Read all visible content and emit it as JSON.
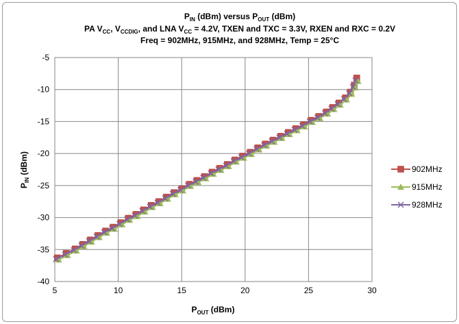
{
  "chart_data": {
    "type": "line",
    "title": {
      "line1": {
        "a": "P",
        "a_sub": "IN",
        "b": " (dBm) versus P",
        "b_sub": "OUT",
        "c": " (dBm)"
      },
      "line2": {
        "a": "PA V",
        "a_sub": "CC",
        "b": ", V",
        "b_sub": "CCDIG",
        "c": ", and LNA V",
        "c_sub": "CC",
        "d": " = 4.2V, TXEN and TXC = 3.3V, RXEN and RXC = 0.2V"
      },
      "line3": "Freq = 902MHz, 915MHz, and 928MHz, Temp = 25°C"
    },
    "xlabel": {
      "main": "P",
      "sub": "OUT",
      "rest": " (dBm)"
    },
    "ylabel": {
      "main": "P",
      "sub": "IN",
      "rest": " (dBm)"
    },
    "xlim": [
      5,
      30
    ],
    "ylim": [
      -40,
      -5
    ],
    "xticks": [
      5,
      10,
      15,
      20,
      25,
      30
    ],
    "yticks": [
      -40,
      -35,
      -30,
      -25,
      -20,
      -15,
      -10,
      -5
    ],
    "grid": true,
    "legend_position": "right",
    "series": [
      {
        "name": "902MHz",
        "color": "#c0504d",
        "marker": "square",
        "x": [
          5.2,
          5.9,
          6.6,
          7.2,
          7.8,
          8.4,
          9.0,
          9.6,
          10.2,
          10.8,
          11.4,
          12.0,
          12.6,
          13.2,
          13.8,
          14.4,
          15.0,
          15.6,
          16.2,
          16.8,
          17.4,
          18.0,
          18.6,
          19.2,
          19.8,
          20.4,
          21.0,
          21.6,
          22.2,
          22.8,
          23.4,
          24.0,
          24.6,
          25.2,
          25.8,
          26.4,
          26.9,
          27.4,
          27.9,
          28.3,
          28.6,
          28.8
        ],
        "y": [
          -36.3,
          -35.6,
          -34.9,
          -34.2,
          -33.5,
          -32.8,
          -32.1,
          -31.5,
          -30.8,
          -30.1,
          -29.5,
          -28.8,
          -28.1,
          -27.5,
          -26.8,
          -26.1,
          -25.5,
          -24.8,
          -24.2,
          -23.6,
          -22.9,
          -22.3,
          -21.7,
          -21.0,
          -20.4,
          -19.8,
          -19.1,
          -18.5,
          -17.9,
          -17.3,
          -16.7,
          -16.1,
          -15.5,
          -14.8,
          -14.2,
          -13.5,
          -12.8,
          -12.1,
          -11.3,
          -10.4,
          -9.3,
          -8.2
        ]
      },
      {
        "name": "915MHz",
        "color": "#9bbb59",
        "marker": "triangle",
        "x": [
          5.3,
          6.0,
          6.7,
          7.3,
          7.9,
          8.5,
          9.1,
          9.7,
          10.3,
          10.9,
          11.5,
          12.1,
          12.7,
          13.3,
          13.9,
          14.5,
          15.1,
          15.7,
          16.3,
          16.9,
          17.5,
          18.1,
          18.7,
          19.3,
          19.9,
          20.5,
          21.1,
          21.7,
          22.3,
          22.9,
          23.5,
          24.1,
          24.7,
          25.3,
          25.9,
          26.5,
          27.0,
          27.5,
          28.0,
          28.4,
          28.7,
          28.9
        ],
        "y": [
          -36.6,
          -35.9,
          -35.2,
          -34.5,
          -33.8,
          -33.1,
          -32.4,
          -31.8,
          -31.1,
          -30.4,
          -29.8,
          -29.1,
          -28.4,
          -27.8,
          -27.1,
          -26.4,
          -25.8,
          -25.1,
          -24.5,
          -23.9,
          -23.2,
          -22.6,
          -22.0,
          -21.3,
          -20.7,
          -20.1,
          -19.4,
          -18.8,
          -18.2,
          -17.6,
          -17.0,
          -16.4,
          -15.8,
          -15.1,
          -14.5,
          -13.8,
          -13.1,
          -12.4,
          -11.6,
          -10.7,
          -9.7,
          -8.7
        ]
      },
      {
        "name": "928MHz",
        "color": "#8064a2",
        "marker": "cross",
        "x": [
          5.1,
          5.8,
          6.5,
          7.1,
          7.7,
          8.3,
          8.9,
          9.5,
          10.1,
          10.7,
          11.3,
          11.9,
          12.5,
          13.1,
          13.7,
          14.3,
          14.9,
          15.5,
          16.1,
          16.7,
          17.3,
          17.9,
          18.5,
          19.1,
          19.7,
          20.3,
          20.9,
          21.5,
          22.1,
          22.7,
          23.3,
          23.9,
          24.5,
          25.1,
          25.7,
          26.3,
          26.8,
          27.3,
          27.8,
          28.2,
          28.5,
          28.7
        ],
        "y": [
          -36.5,
          -35.8,
          -35.1,
          -34.4,
          -33.7,
          -33.0,
          -32.3,
          -31.7,
          -31.0,
          -30.3,
          -29.7,
          -29.0,
          -28.3,
          -27.7,
          -27.0,
          -26.3,
          -25.7,
          -25.0,
          -24.4,
          -23.8,
          -23.1,
          -22.5,
          -21.9,
          -21.2,
          -20.6,
          -20.0,
          -19.3,
          -18.7,
          -18.1,
          -17.5,
          -16.9,
          -16.3,
          -15.7,
          -15.0,
          -14.4,
          -13.7,
          -13.0,
          -12.3,
          -11.5,
          -10.6,
          -9.6,
          -8.6
        ]
      }
    ]
  }
}
